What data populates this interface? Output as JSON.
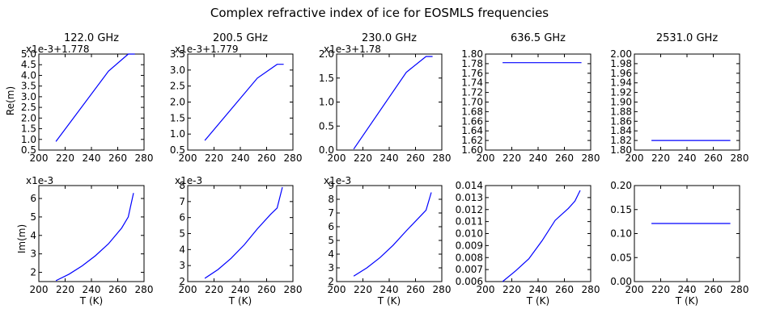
{
  "figure": {
    "title": "Complex refractive index of ice for EOSMLS frequencies",
    "row_labels": [
      "Re(m)",
      "Im(m)"
    ],
    "xlabel": "T (K)",
    "line_color": "#0000ff"
  },
  "chart_data": [
    {
      "type": "line",
      "title": "122.0 GHz",
      "ylabel": "Re(m)",
      "offset_text": "x1e-3+1.778",
      "x": [
        213,
        253,
        268,
        273
      ],
      "y": [
        0.9,
        4.2,
        5.0,
        5.0
      ],
      "xlim": [
        200,
        280
      ],
      "xticks": [
        200,
        220,
        240,
        260,
        280
      ],
      "xtick_labels": [
        "200",
        "220",
        "240",
        "260",
        "280"
      ],
      "ylim": [
        0.5,
        5.0
      ],
      "yticks": [
        0.5,
        1.0,
        1.5,
        2.0,
        2.5,
        3.0,
        3.5,
        4.0,
        4.5,
        5.0
      ],
      "ytick_labels": [
        "0.5",
        "1.0",
        "1.5",
        "2.0",
        "2.5",
        "3.0",
        "3.5",
        "4.0",
        "4.5",
        "5.0"
      ]
    },
    {
      "type": "line",
      "title": "200.5 GHz",
      "offset_text": "x1e-3+1.779",
      "x": [
        213,
        253,
        268,
        273
      ],
      "y": [
        0.8,
        2.75,
        3.18,
        3.18
      ],
      "xlim": [
        200,
        280
      ],
      "xticks": [
        200,
        220,
        240,
        260,
        280
      ],
      "xtick_labels": [
        "200",
        "220",
        "240",
        "260",
        "280"
      ],
      "ylim": [
        0.5,
        3.5
      ],
      "yticks": [
        0.5,
        1.0,
        1.5,
        2.0,
        2.5,
        3.0,
        3.5
      ],
      "ytick_labels": [
        "0.5",
        "1.0",
        "1.5",
        "2.0",
        "2.5",
        "3.0",
        "3.5"
      ]
    },
    {
      "type": "line",
      "title": "230.0 GHz",
      "offset_text": "x1e-3+1.78",
      "x": [
        213,
        253,
        268,
        273
      ],
      "y": [
        0.02,
        1.62,
        1.95,
        1.95
      ],
      "xlim": [
        200,
        280
      ],
      "xticks": [
        200,
        220,
        240,
        260,
        280
      ],
      "xtick_labels": [
        "200",
        "220",
        "240",
        "260",
        "280"
      ],
      "ylim": [
        0.0,
        2.0
      ],
      "yticks": [
        0.0,
        0.5,
        1.0,
        1.5,
        2.0
      ],
      "ytick_labels": [
        "0.0",
        "0.5",
        "1.0",
        "1.5",
        "2.0"
      ]
    },
    {
      "type": "line",
      "title": "636.5 GHz",
      "offset_text": "",
      "x": [
        213,
        273
      ],
      "y": [
        1.782,
        1.782
      ],
      "xlim": [
        200,
        280
      ],
      "xticks": [
        200,
        220,
        240,
        260,
        280
      ],
      "xtick_labels": [
        "200",
        "220",
        "240",
        "260",
        "280"
      ],
      "ylim": [
        1.6,
        1.8
      ],
      "yticks": [
        1.6,
        1.62,
        1.64,
        1.66,
        1.68,
        1.7,
        1.72,
        1.74,
        1.76,
        1.78,
        1.8
      ],
      "ytick_labels": [
        "1.60",
        "1.62",
        "1.64",
        "1.66",
        "1.68",
        "1.70",
        "1.72",
        "1.74",
        "1.76",
        "1.78",
        "1.80"
      ]
    },
    {
      "type": "line",
      "title": "2531.0 GHz",
      "offset_text": "",
      "x": [
        213,
        273
      ],
      "y": [
        1.82,
        1.82
      ],
      "xlim": [
        200,
        280
      ],
      "xticks": [
        200,
        220,
        240,
        260,
        280
      ],
      "xtick_labels": [
        "200",
        "220",
        "240",
        "260",
        "280"
      ],
      "ylim": [
        1.8,
        2.0
      ],
      "yticks": [
        1.8,
        1.82,
        1.84,
        1.86,
        1.88,
        1.9,
        1.92,
        1.94,
        1.96,
        1.98,
        2.0
      ],
      "ytick_labels": [
        "1.80",
        "1.82",
        "1.84",
        "1.86",
        "1.88",
        "1.90",
        "1.92",
        "1.94",
        "1.96",
        "1.98",
        "2.00"
      ]
    },
    {
      "type": "line",
      "title": "",
      "ylabel": "Im(m)",
      "xlabel": "T (K)",
      "offset_text": "x1e-3",
      "x": [
        213,
        223,
        233,
        243,
        253,
        263,
        268,
        272
      ],
      "y": [
        1.55,
        1.9,
        2.35,
        2.9,
        3.55,
        4.4,
        5.0,
        6.3
      ],
      "xlim": [
        200,
        280
      ],
      "xticks": [
        200,
        220,
        240,
        260,
        280
      ],
      "xtick_labels": [
        "200",
        "220",
        "240",
        "260",
        "280"
      ],
      "ylim": [
        1.5,
        6.7
      ],
      "yticks": [
        2,
        3,
        4,
        5,
        6
      ],
      "ytick_labels": [
        "2",
        "3",
        "4",
        "5",
        "6"
      ]
    },
    {
      "type": "line",
      "title": "",
      "xlabel": "T (K)",
      "offset_text": "x1e-3",
      "x": [
        213,
        223,
        233,
        243,
        253,
        263,
        268,
        272
      ],
      "y": [
        2.2,
        2.75,
        3.45,
        4.3,
        5.3,
        6.2,
        6.6,
        7.9
      ],
      "xlim": [
        200,
        280
      ],
      "xticks": [
        200,
        220,
        240,
        260,
        280
      ],
      "xtick_labels": [
        "200",
        "220",
        "240",
        "260",
        "280"
      ],
      "ylim": [
        2,
        8
      ],
      "yticks": [
        2,
        3,
        4,
        5,
        6,
        7,
        8
      ],
      "ytick_labels": [
        "2",
        "3",
        "4",
        "5",
        "6",
        "7",
        "8"
      ]
    },
    {
      "type": "line",
      "title": "",
      "xlabel": "T (K)",
      "offset_text": "x1e-3",
      "x": [
        213,
        223,
        233,
        243,
        253,
        263,
        268,
        272
      ],
      "y": [
        2.4,
        3.0,
        3.75,
        4.65,
        5.7,
        6.7,
        7.2,
        8.5
      ],
      "xlim": [
        200,
        280
      ],
      "xticks": [
        200,
        220,
        240,
        260,
        280
      ],
      "xtick_labels": [
        "200",
        "220",
        "240",
        "260",
        "280"
      ],
      "ylim": [
        2,
        9
      ],
      "yticks": [
        2,
        3,
        4,
        5,
        6,
        7,
        8,
        9
      ],
      "ytick_labels": [
        "2",
        "3",
        "4",
        "5",
        "6",
        "7",
        "8",
        "9"
      ]
    },
    {
      "type": "line",
      "title": "",
      "xlabel": "T (K)",
      "offset_text": "",
      "x": [
        213,
        223,
        233,
        243,
        253,
        263,
        268,
        272
      ],
      "y": [
        0.006,
        0.0069,
        0.0079,
        0.0094,
        0.0111,
        0.0121,
        0.0127,
        0.0136
      ],
      "xlim": [
        200,
        280
      ],
      "xticks": [
        200,
        220,
        240,
        260,
        280
      ],
      "xtick_labels": [
        "200",
        "220",
        "240",
        "260",
        "280"
      ],
      "ylim": [
        0.006,
        0.014
      ],
      "yticks": [
        0.006,
        0.007,
        0.008,
        0.009,
        0.01,
        0.011,
        0.012,
        0.013,
        0.014
      ],
      "ytick_labels": [
        "0.006",
        "0.007",
        "0.008",
        "0.009",
        "0.010",
        "0.011",
        "0.012",
        "0.013",
        "0.014"
      ]
    },
    {
      "type": "line",
      "title": "",
      "xlabel": "T (K)",
      "offset_text": "",
      "x": [
        213,
        273
      ],
      "y": [
        0.121,
        0.121
      ],
      "xlim": [
        200,
        280
      ],
      "xticks": [
        200,
        220,
        240,
        260,
        280
      ],
      "xtick_labels": [
        "200",
        "220",
        "240",
        "260",
        "280"
      ],
      "ylim": [
        0.0,
        0.2
      ],
      "yticks": [
        0.0,
        0.05,
        0.1,
        0.15,
        0.2
      ],
      "ytick_labels": [
        "0.00",
        "0.05",
        "0.10",
        "0.15",
        "0.20"
      ]
    }
  ]
}
